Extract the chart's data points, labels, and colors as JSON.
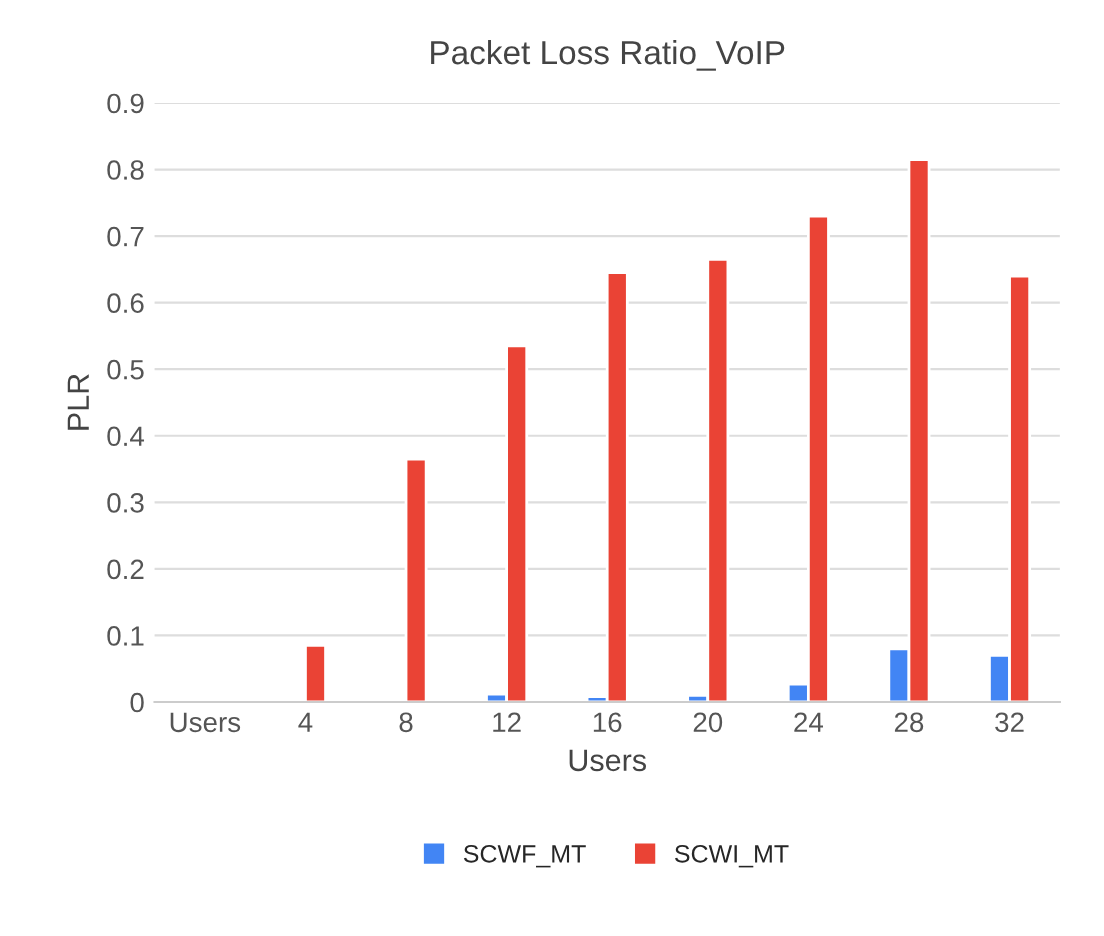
{
  "chart_data": {
    "type": "bar",
    "title": "Packet Loss Ratio_VoIP",
    "xlabel": "Users",
    "ylabel": "PLR",
    "categories": [
      "Users",
      "4",
      "8",
      "12",
      "16",
      "20",
      "24",
      "28",
      "32"
    ],
    "series": [
      {
        "name": "SCWF_MT",
        "color": "#4285f4",
        "values": [
          null,
          null,
          null,
          0.012,
          0.008,
          0.01,
          0.027,
          0.08,
          0.07
        ]
      },
      {
        "name": "SCWI_MT",
        "color": "#ea4335",
        "values": [
          null,
          0.085,
          0.365,
          0.535,
          0.645,
          0.665,
          0.73,
          0.815,
          0.64
        ]
      }
    ],
    "ylim": [
      0,
      0.9
    ],
    "yticks": [
      0,
      0.1,
      0.2,
      0.3,
      0.4,
      0.5,
      0.6,
      0.7,
      0.8,
      0.9
    ],
    "grid": "y",
    "legend": "bottom"
  }
}
